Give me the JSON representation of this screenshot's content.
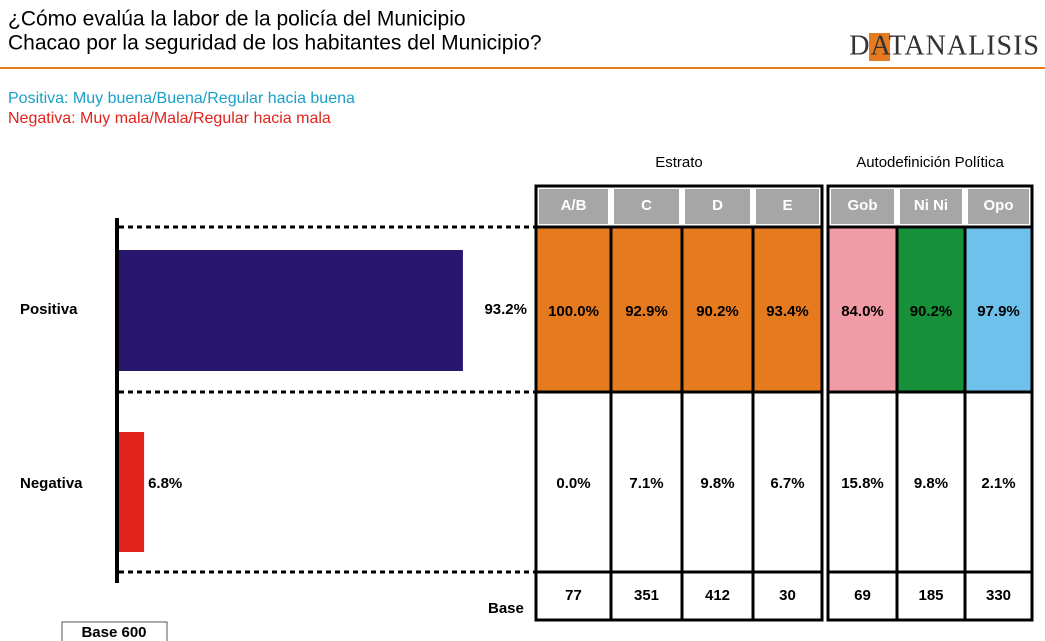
{
  "title_lines": [
    "¿Cómo evalúa la labor de la policía del Municipio",
    "Chacao por la seguridad de los habitantes del Municipio?"
  ],
  "logo": "DATANALISIS",
  "legend": [
    "Positiva: Muy buena/Buena/Regular hacia buena",
    "Negativa: Muy mala/Mala/Regular hacia mala"
  ],
  "chart_data": {
    "type": "bar",
    "categories": [
      "Positiva",
      "Negativa"
    ],
    "values": [
      93.2,
      6.8
    ],
    "value_labels": [
      "93.2%",
      "6.8%"
    ],
    "colors": [
      "#28166F",
      "#E0231C"
    ]
  },
  "table": {
    "groups": [
      {
        "label": "Estrato",
        "columns": [
          "A/B",
          "C",
          "D",
          "E"
        ]
      },
      {
        "label": "Autodefinición Política",
        "columns": [
          "Gob",
          "Ni Ni",
          "Opo"
        ]
      }
    ],
    "positive_colors": [
      "#E57A1E",
      "#E57A1E",
      "#E57A1E",
      "#E57A1E",
      "#F19BA6",
      "#16913A",
      "#6EC1EA"
    ],
    "rows": [
      [
        "100.0%",
        "92.9%",
        "90.2%",
        "93.4%",
        "84.0%",
        "90.2%",
        "97.9%"
      ],
      [
        "0.0%",
        "7.1%",
        "9.8%",
        "6.7%",
        "15.8%",
        "9.8%",
        "2.1%"
      ]
    ],
    "base_label": "Base",
    "base": [
      77,
      351,
      412,
      30,
      69,
      185,
      330
    ]
  },
  "sample_note": "Base 600"
}
